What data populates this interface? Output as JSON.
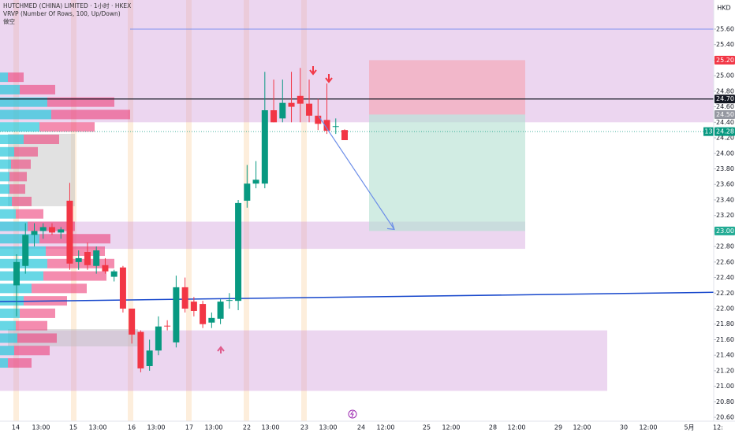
{
  "chart_data": {
    "type": "candlestick",
    "title": "HUTCHMED (CHINA) LIMITED · 1小时 · HKEX",
    "subtitle": "VRVP (Number Of Rows, 100, Up/Down)",
    "annotation": "做空",
    "currency": "HKD",
    "up_color": "#089981",
    "down_color": "#f23645",
    "ylim": [
      20.55,
      25.975
    ],
    "yticks": [
      {
        "value": 20.6,
        "label": "20.60"
      },
      {
        "value": 20.8,
        "label": "20.80"
      },
      {
        "value": 21.0,
        "label": "21.00"
      },
      {
        "value": 21.2,
        "label": "21.20"
      },
      {
        "value": 21.4,
        "label": "21.40"
      },
      {
        "value": 21.6,
        "label": "21.60"
      },
      {
        "value": 21.8,
        "label": "21.80"
      },
      {
        "value": 22.0,
        "label": "22.00"
      },
      {
        "value": 22.2,
        "label": "22.20"
      },
      {
        "value": 22.4,
        "label": "22.40"
      },
      {
        "value": 22.6,
        "label": "22.60"
      },
      {
        "value": 22.8,
        "label": "22.80"
      },
      {
        "value": 23.0,
        "label": "23.00"
      },
      {
        "value": 23.2,
        "label": "23.20"
      },
      {
        "value": 23.4,
        "label": "23.40"
      },
      {
        "value": 23.6,
        "label": "23.60"
      },
      {
        "value": 23.8,
        "label": "23.80"
      },
      {
        "value": 24.0,
        "label": "24.00"
      },
      {
        "value": 24.2,
        "label": "24.20"
      },
      {
        "value": 24.4,
        "label": "24.40"
      },
      {
        "value": 24.6,
        "label": "24.60"
      },
      {
        "value": 24.8,
        "label": "24.80"
      },
      {
        "value": 25.0,
        "label": "25.00"
      },
      {
        "value": 25.2,
        "label": "25.20"
      },
      {
        "value": 25.4,
        "label": "25.40"
      },
      {
        "value": 25.6,
        "label": "25.60"
      }
    ],
    "x_labels": [
      "14",
      "13:00",
      "15",
      "13:00",
      "16",
      "13:00",
      "17",
      "13:00",
      "22",
      "13:00",
      "23",
      "13:00",
      "24",
      "12:00",
      "25",
      "12:00",
      "28",
      "12:00",
      "29",
      "12:00",
      "30",
      "12:00",
      "5月",
      "12:"
    ],
    "candles": {
      "open": [
        22.3,
        22.55,
        22.95,
        23.0,
        23.05,
        22.98,
        23.39,
        22.6,
        22.73,
        22.55,
        22.56,
        22.41,
        22.53,
        22.0,
        21.7,
        21.26,
        21.46,
        21.78,
        21.565,
        22.275,
        22.09,
        22.06,
        21.82,
        21.87,
        22.1,
        22.1,
        23.39,
        23.61,
        23.61,
        24.555,
        24.45,
        24.65,
        24.74,
        24.64,
        24.485,
        24.43,
        24.35,
        24.3
      ],
      "high": [
        22.7,
        23.1,
        23.1,
        23.1,
        23.1,
        23.05,
        23.62,
        22.75,
        22.85,
        22.8,
        22.65,
        22.5,
        22.55,
        22.0,
        21.72,
        21.6,
        21.9,
        21.85,
        22.425,
        22.4,
        22.15,
        22.1,
        21.95,
        22.12,
        22.2,
        23.4,
        23.85,
        23.9,
        25.05,
        24.95,
        24.95,
        25.05,
        25.1,
        24.95,
        24.7,
        24.9,
        24.45,
        24.31
      ],
      "low": [
        21.9,
        22.45,
        22.8,
        22.9,
        22.95,
        22.9,
        22.5,
        22.5,
        22.5,
        22.45,
        22.45,
        22.35,
        21.95,
        21.55,
        21.18,
        21.2,
        21.4,
        21.72,
        21.5,
        21.95,
        21.9,
        21.75,
        21.75,
        21.8,
        22.0,
        21.98,
        23.3,
        23.55,
        23.55,
        24.4,
        24.4,
        24.4,
        24.4,
        24.4,
        24.3,
        24.25,
        24.25,
        24.2
      ],
      "close": [
        22.6,
        22.95,
        23.0,
        23.05,
        22.98,
        23.02,
        22.58,
        22.65,
        22.56,
        22.75,
        22.48,
        22.48,
        22.0,
        21.665,
        21.23,
        21.46,
        21.77,
        21.77,
        22.275,
        22.0,
        21.97,
        21.8,
        21.88,
        22.09,
        22.11,
        23.36,
        23.61,
        23.66,
        24.555,
        24.4,
        24.65,
        24.6,
        24.64,
        24.485,
        24.38,
        24.29,
        24.35,
        24.17
      ]
    },
    "price_labels": [
      {
        "value": 25.2,
        "label": "25.20",
        "color": "#f23645"
      },
      {
        "value": 24.7,
        "label": "24.70",
        "color": "#131722"
      },
      {
        "value": 24.5,
        "label": "24.50",
        "color": "#9598a1"
      },
      {
        "value": 24.28,
        "label": "24.28",
        "color": "#089981"
      },
      {
        "value": 23.0,
        "label": "23.00",
        "color": "#22ab94"
      }
    ],
    "countdown": "13",
    "levels": [
      {
        "value": 25.6,
        "color": "#5b7cf0"
      },
      {
        "value": 24.7,
        "color": "#131722"
      },
      {
        "value": 24.28,
        "color": "#089981"
      }
    ],
    "trendline": {
      "start": 22.09,
      "end": 22.21,
      "color": "#1848cc"
    },
    "position": {
      "stop": 25.2,
      "entry": 24.5,
      "target": 23.0
    },
    "zones": [
      {
        "low": 24.4,
        "high": 25.98
      },
      {
        "low": 22.77,
        "high": 23.12
      },
      {
        "low": 20.94,
        "high": 21.72
      }
    ],
    "volume_profile": {
      "prices": [
        21.3,
        21.46,
        21.62,
        21.78,
        21.94,
        22.1,
        22.26,
        22.42,
        22.58,
        22.74,
        22.9,
        23.06,
        23.22,
        23.38,
        23.54,
        23.7,
        23.86,
        24.02,
        24.18,
        24.34,
        24.5,
        24.66,
        24.82,
        24.98
      ],
      "up": [
        10,
        18,
        22,
        20,
        25,
        30,
        40,
        55,
        60,
        58,
        50,
        35,
        20,
        15,
        12,
        12,
        14,
        18,
        30,
        50,
        65,
        60,
        25,
        10
      ],
      "down": [
        30,
        45,
        50,
        40,
        45,
        55,
        70,
        80,
        85,
        75,
        90,
        60,
        35,
        25,
        20,
        22,
        25,
        30,
        45,
        70,
        100,
        85,
        45,
        20
      ]
    }
  }
}
